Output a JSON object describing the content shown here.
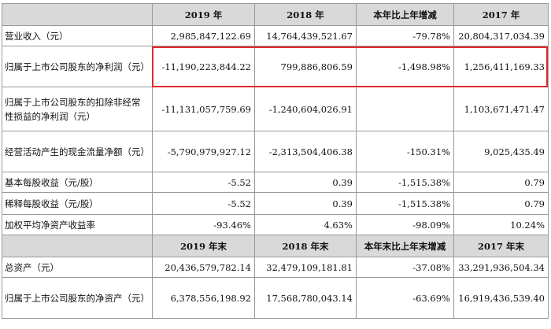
{
  "header1": [
    "",
    "2019 年",
    "2018 年",
    "本年比上年增减",
    "2017 年"
  ],
  "rows1": [
    {
      "label": "营业收入（元）",
      "v2019": "2,985,847,122.69",
      "v2018": "14,764,439,521.67",
      "change": "-79.78%",
      "v2017": "20,804,317,034.39"
    },
    {
      "label": "归属于上市公司股东的净利润（元）",
      "v2019": "-11,190,223,844.22",
      "v2018": "799,886,806.59",
      "change": "-1,498.98%",
      "v2017": "1,256,411,169.33"
    },
    {
      "label": "归属于上市公司股东的扣除非经常性损益的净利润（元）",
      "v2019": "-11,131,057,759.69",
      "v2018": "-1,240,604,026.91",
      "change": "",
      "v2017": "1,103,671,471.47"
    },
    {
      "label": "经营活动产生的现金流量净额（元）",
      "v2019": "-5,790,979,927.12",
      "v2018": "-2,313,504,406.38",
      "change": "-150.31%",
      "v2017": "9,025,435.49"
    },
    {
      "label": "基本每股收益（元/股）",
      "v2019": "-5.52",
      "v2018": "0.39",
      "change": "-1,515.38%",
      "v2017": "0.79"
    },
    {
      "label": "稀释每股收益（元/股）",
      "v2019": "-5.52",
      "v2018": "0.39",
      "change": "-1,515.38%",
      "v2017": "0.79"
    },
    {
      "label": "加权平均净资产收益率",
      "v2019": "-93.46%",
      "v2018": "4.63%",
      "change": "-98.09%",
      "v2017": "10.24%"
    }
  ],
  "header2": [
    "",
    "2019 年末",
    "2018 年末",
    "本年末比上年末增减",
    "2017 年末"
  ],
  "rows2": [
    {
      "label": "总资产（元）",
      "v2019": "20,436,579,782.14",
      "v2018": "32,479,109,181.81",
      "change": "-37.08%",
      "v2017": "33,291,936,504.34"
    },
    {
      "label": "归属于上市公司股东的净资产（元）",
      "v2019": "6,378,556,198.92",
      "v2018": "17,568,780,043.14",
      "change": "-63.69%",
      "v2017": "16,919,436,539.40"
    }
  ],
  "highlight_color": "#e0282a",
  "header_bg": "#d9d9d9"
}
